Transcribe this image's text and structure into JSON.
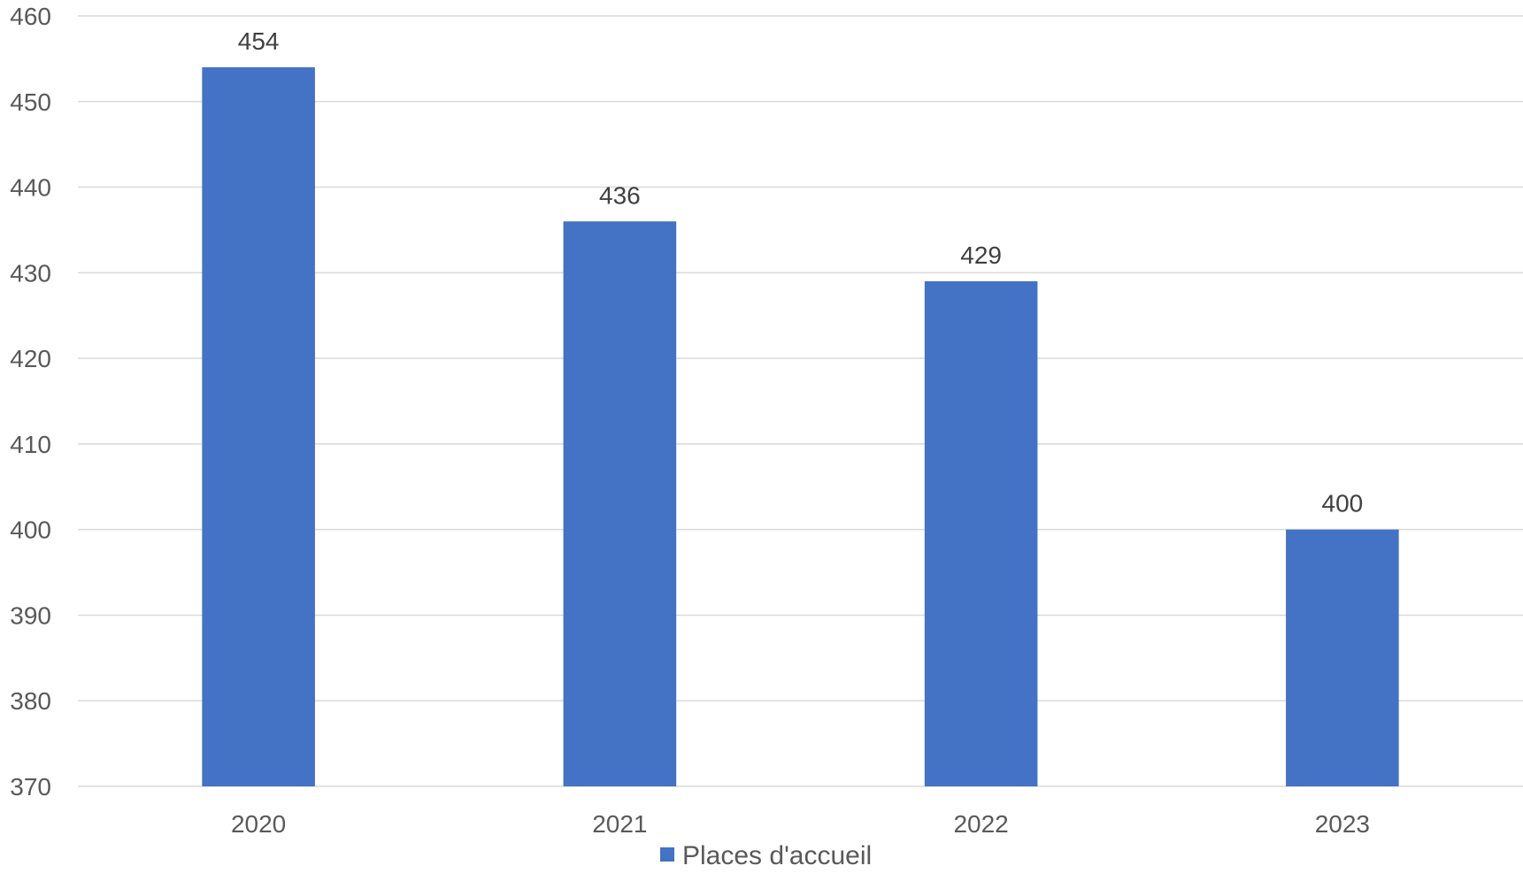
{
  "chart_data": {
    "type": "bar",
    "categories": [
      "2020",
      "2021",
      "2022",
      "2023"
    ],
    "series": [
      {
        "name": "Places d'accueil",
        "values": [
          454,
          436,
          429,
          400
        ],
        "color": "#4472c4"
      }
    ],
    "data_labels": [
      "454",
      "436",
      "429",
      "400"
    ],
    "ylim": [
      370,
      460
    ],
    "yticks": [
      370,
      380,
      390,
      400,
      410,
      420,
      430,
      440,
      450,
      460
    ],
    "grid": true,
    "legend": {
      "position": "bottom",
      "entries": [
        "Places d'accueil"
      ]
    },
    "title": "",
    "xlabel": "",
    "ylabel": ""
  }
}
